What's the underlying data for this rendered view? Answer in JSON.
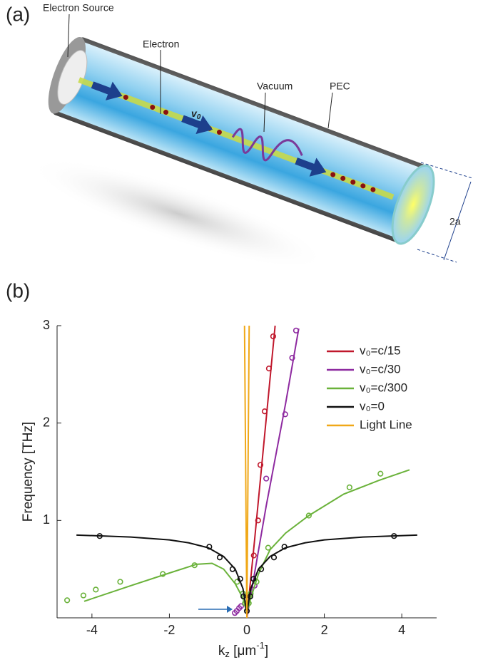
{
  "panel_a": {
    "label": "(a)",
    "electron_source": "Electron Source",
    "electron": "Electron",
    "vacuum": "Vacuum",
    "pec": "PEC",
    "velocity": {
      "base": "v",
      "sub": "0"
    },
    "radius": "2a"
  },
  "panel_b": {
    "label": "(b)"
  },
  "chart_data": {
    "type": "line",
    "ylabel": "Frequency  [THz]",
    "xlabel": {
      "base": "k",
      "sub": "z",
      "unit": " [μm",
      "sup": "-1",
      "close": "]"
    },
    "xlim": [
      -4.9,
      4.9
    ],
    "ylim": [
      0,
      3
    ],
    "xticks": [
      -4,
      -2,
      0,
      2,
      4
    ],
    "yticks": [
      1,
      2,
      3
    ],
    "legend": "top-right",
    "series": [
      {
        "name": "v₀=c/15",
        "color": "#c0182c",
        "x": [
          0,
          0.2,
          0.73
        ],
        "values": [
          0,
          0.8,
          3
        ],
        "marker_x": [
          0.18,
          0.29,
          0.35,
          0.46,
          0.57,
          0.68
        ],
        "marker_values": [
          0.64,
          1.0,
          1.57,
          2.12,
          2.56,
          2.89
        ]
      },
      {
        "name": "v₀=c/30",
        "color": "#8e2aa0",
        "x": [
          0,
          0.5,
          1.0,
          1.34
        ],
        "values": [
          0,
          1.15,
          2.2,
          2.97
        ],
        "marker_x": [
          -0.31,
          -0.26,
          -0.2,
          -0.15,
          0.2,
          0.5,
          0.99,
          1.17,
          1.27
        ],
        "marker_values": [
          0.05,
          0.07,
          0.1,
          0.12,
          0.33,
          1.43,
          2.09,
          2.67,
          2.95
        ]
      },
      {
        "name": "v₀=c/300",
        "color": "#6ab23a",
        "x": [
          -4.2,
          -3,
          -2,
          -1.3,
          -0.9,
          -0.6,
          -0.3,
          -0.1,
          0,
          0.1,
          0.3,
          0.6,
          1,
          1.6,
          2.5,
          3.4,
          4.2
        ],
        "values": [
          0.17,
          0.33,
          0.46,
          0.55,
          0.56,
          0.5,
          0.35,
          0.2,
          0.05,
          0.2,
          0.45,
          0.7,
          0.87,
          1.05,
          1.27,
          1.41,
          1.52
        ],
        "marker_x": [
          -4.64,
          -4.22,
          -3.9,
          -3.27,
          -2.17,
          -1.35,
          -0.25,
          -0.1,
          -0.05,
          0.05,
          0.1,
          0.25,
          0.55,
          1.6,
          2.65,
          3.45
        ],
        "marker_values": [
          0.18,
          0.23,
          0.29,
          0.37,
          0.45,
          0.54,
          0.37,
          0.25,
          0.15,
          0.15,
          0.25,
          0.37,
          0.72,
          1.05,
          1.34,
          1.48
        ]
      },
      {
        "name": "v₀=0",
        "color": "#111111",
        "x": [
          -4.4,
          -3,
          -2,
          -1.5,
          -1,
          -0.6,
          -0.3,
          -0.1,
          0,
          0.1,
          0.3,
          0.6,
          1,
          1.5,
          2,
          3,
          4.4
        ],
        "values": [
          0.85,
          0.83,
          0.8,
          0.77,
          0.72,
          0.63,
          0.5,
          0.3,
          0.05,
          0.3,
          0.5,
          0.63,
          0.72,
          0.77,
          0.8,
          0.83,
          0.85
        ],
        "marker_x": [
          -3.8,
          -0.97,
          -0.7,
          -0.37,
          -0.17,
          -0.09,
          0,
          0.09,
          0.17,
          0.37,
          0.7,
          0.97,
          3.8
        ],
        "marker_values": [
          0.84,
          0.73,
          0.62,
          0.5,
          0.4,
          0.22,
          0.07,
          0.22,
          0.4,
          0.5,
          0.62,
          0.73,
          0.84
        ]
      },
      {
        "name": "Light Line",
        "color": "#f0a818",
        "x": [
          -0.06,
          0,
          0.06
        ],
        "values": [
          3,
          0,
          3
        ]
      }
    ]
  }
}
